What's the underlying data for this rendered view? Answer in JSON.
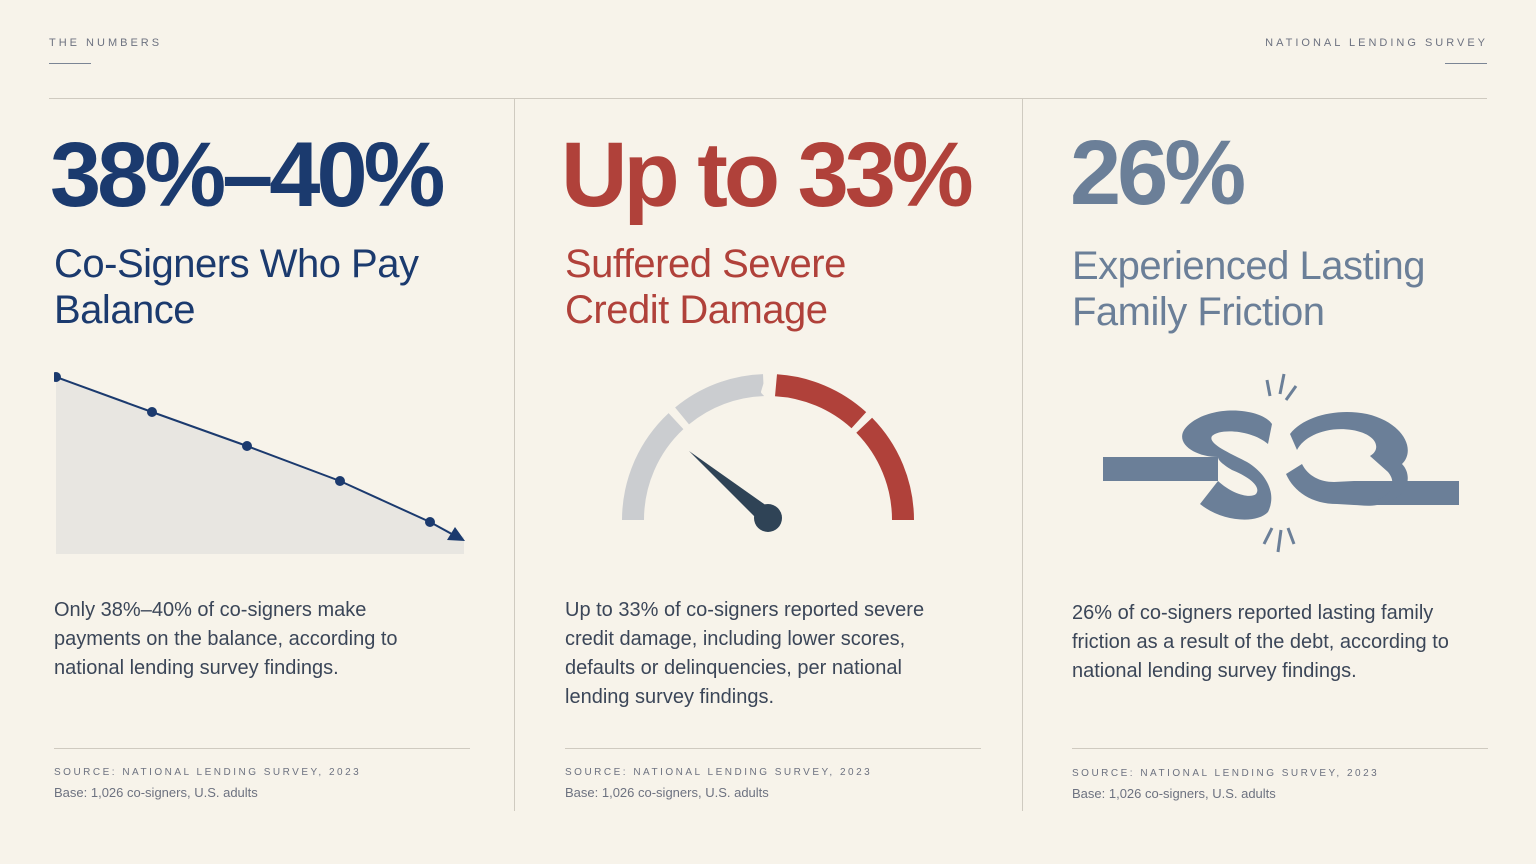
{
  "header": {
    "kicker_left": "THE NUMBERS",
    "kicker_right": "NATIONAL LENDING SURVEY"
  },
  "colors": {
    "navy": "#1b3a6e",
    "red": "#b0413a",
    "slate": "#6b7f98",
    "gauge_gray": "#cbcdd0",
    "background": "#f7f3ea"
  },
  "stats": [
    {
      "value": "38%–40%",
      "label_line1": "Co-Signers Who Pay",
      "label_line2": "Balance",
      "body": "Only 38%–40% of co-signers make payments on the balance, according to national lending survey findings.",
      "source": "SOURCE: NATIONAL LENDING SURVEY, 2023",
      "base": "Base: 1,026 co-signers, U.S. adults",
      "icon": "declining-line-chart-icon"
    },
    {
      "value": "Up to 33%",
      "label_line1": "Suffered Severe",
      "label_line2": "Credit Damage",
      "body": "Up to 33% of co-signers reported severe credit damage, including lower scores, defaults or delinquencies, per national lending survey findings.",
      "source": "SOURCE: NATIONAL LENDING SURVEY, 2023",
      "base": "Base: 1,026 co-signers, U.S. adults",
      "icon": "cracked-gauge-icon"
    },
    {
      "value": "26%",
      "label_line1": "Experienced Lasting",
      "label_line2": "Family Friction",
      "body": "26% of co-signers reported lasting family friction as a result of the debt, according to national lending survey findings.",
      "source": "SOURCE: NATIONAL LENDING SURVEY, 2023",
      "base": "Base: 1,026 co-signers, U.S. adults",
      "icon": "broken-chain-link-icon"
    }
  ]
}
